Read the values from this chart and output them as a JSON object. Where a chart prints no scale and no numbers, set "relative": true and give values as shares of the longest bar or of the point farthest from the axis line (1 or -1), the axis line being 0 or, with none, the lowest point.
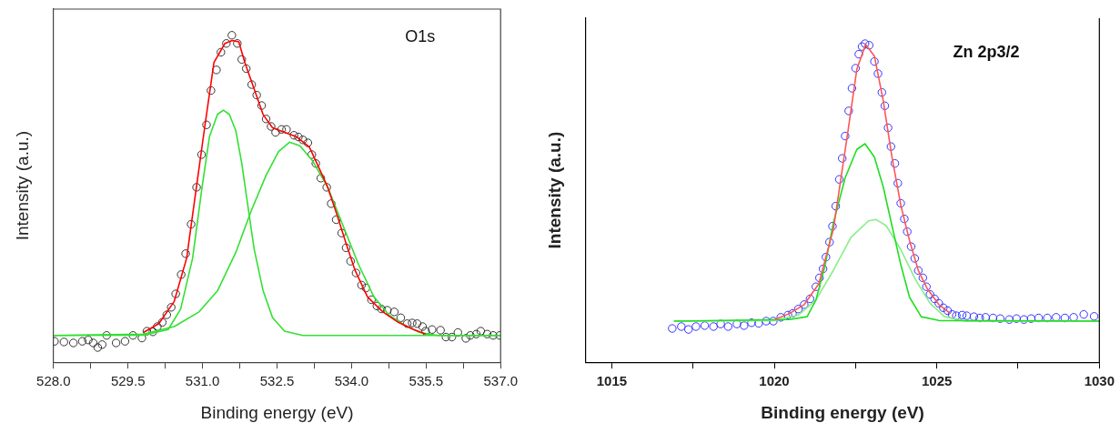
{
  "chart_data": [
    {
      "type": "scatter",
      "relative": true,
      "xlabel": "Binding energy (eV)",
      "ylabel": "Intensity (a.u.)",
      "annotations": [
        "O1s"
      ],
      "grid": false,
      "legend": false,
      "tick_labels": "x",
      "xlim": [
        528,
        537
      ],
      "xticks": [
        {
          "value": 528,
          "label": "528.0"
        },
        {
          "value": 528.75,
          "label": null
        },
        {
          "value": 529.5,
          "label": "529.5"
        },
        {
          "value": 530.25,
          "label": null
        },
        {
          "value": 531,
          "label": "531.0"
        },
        {
          "value": 531.75,
          "label": null
        },
        {
          "value": 532.5,
          "label": "532.5"
        },
        {
          "value": 533.25,
          "label": null
        },
        {
          "value": 534,
          "label": "534.0"
        },
        {
          "value": 534.75,
          "label": null
        },
        {
          "value": 535.5,
          "label": "535.5"
        },
        {
          "value": 536.25,
          "label": null
        },
        {
          "value": 537,
          "label": "537.0"
        }
      ],
      "series": [
        {
          "type": "scatter",
          "marker": "circle",
          "color": "#333333",
          "x": [
            528.02,
            528.21,
            528.4,
            528.58,
            528.7,
            528.8,
            528.89,
            528.98,
            529.07,
            529.26,
            529.44,
            529.6,
            529.78,
            529.88,
            530.0,
            530.09,
            530.19,
            530.28,
            530.37,
            530.46,
            530.57,
            530.66,
            530.77,
            530.88,
            530.98,
            531.08,
            531.17,
            531.28,
            531.37,
            531.48,
            531.59,
            531.7,
            531.79,
            531.88,
            531.99,
            532.09,
            532.19,
            532.28,
            532.38,
            532.47,
            532.59,
            532.69,
            532.84,
            532.93,
            533.02,
            533.12,
            533.2,
            533.28,
            533.38,
            533.5,
            533.59,
            533.69,
            533.8,
            533.89,
            533.98,
            534.09,
            534.2,
            534.29,
            534.4,
            534.51,
            534.6,
            534.72,
            534.86,
            534.99,
            535.12,
            535.22,
            535.32,
            535.43,
            535.49,
            535.62,
            535.79,
            535.9,
            536.02,
            536.14,
            536.3,
            536.39,
            536.51,
            536.6,
            536.73,
            536.85,
            536.98
          ],
          "values": [
            0.064,
            0.062,
            0.059,
            0.064,
            0.068,
            0.059,
            0.045,
            0.054,
            0.082,
            0.059,
            0.064,
            0.082,
            0.074,
            0.095,
            0.093,
            0.109,
            0.122,
            0.145,
            0.168,
            0.209,
            0.268,
            0.332,
            0.422,
            0.535,
            0.635,
            0.726,
            0.831,
            0.894,
            0.948,
            0.975,
            1.0,
            0.975,
            0.926,
            0.898,
            0.849,
            0.817,
            0.785,
            0.744,
            0.721,
            0.703,
            0.712,
            0.712,
            0.694,
            0.689,
            0.68,
            0.671,
            0.635,
            0.608,
            0.563,
            0.535,
            0.485,
            0.436,
            0.395,
            0.35,
            0.309,
            0.273,
            0.236,
            0.227,
            0.191,
            0.172,
            0.163,
            0.159,
            0.154,
            0.136,
            0.118,
            0.12,
            0.118,
            0.109,
            0.095,
            0.1,
            0.098,
            0.077,
            0.077,
            0.091,
            0.073,
            0.082,
            0.086,
            0.095,
            0.086,
            0.082,
            0.082
          ]
        },
        {
          "type": "line",
          "marker": "none",
          "color": "#ff0000",
          "x": [
            529.81,
            530.12,
            530.43,
            530.68,
            530.86,
            531.05,
            531.23,
            531.45,
            531.6,
            531.73,
            531.85,
            532.04,
            532.22,
            532.41,
            532.65,
            532.9,
            533.15,
            533.33,
            533.52,
            533.7,
            533.89,
            534.07,
            534.32,
            534.63,
            534.94,
            535.25,
            535.49
          ],
          "values": [
            0.091,
            0.118,
            0.186,
            0.318,
            0.517,
            0.726,
            0.917,
            0.975,
            0.984,
            0.98,
            0.917,
            0.835,
            0.757,
            0.717,
            0.703,
            0.689,
            0.658,
            0.599,
            0.535,
            0.454,
            0.363,
            0.281,
            0.2,
            0.154,
            0.122,
            0.1,
            0.086
          ]
        },
        {
          "type": "line",
          "marker": "none",
          "color": "#33e033",
          "x": [
            528.0,
            529.81,
            530.31,
            530.56,
            530.8,
            530.99,
            531.14,
            531.3,
            531.42,
            531.54,
            531.67,
            531.79,
            531.91,
            532.04,
            532.22,
            532.41,
            532.65,
            533.02,
            537.0
          ],
          "values": [
            0.082,
            0.083,
            0.1,
            0.163,
            0.318,
            0.535,
            0.69,
            0.758,
            0.771,
            0.758,
            0.708,
            0.608,
            0.481,
            0.345,
            0.218,
            0.136,
            0.095,
            0.082,
            0.082
          ]
        },
        {
          "type": "line",
          "marker": "none",
          "color": "#33e033",
          "x": [
            528.0,
            529.81,
            530.43,
            530.93,
            531.3,
            531.67,
            531.98,
            532.28,
            532.53,
            532.75,
            532.96,
            533.21,
            533.52,
            533.83,
            534.14,
            534.45,
            534.75,
            535.06,
            535.37,
            535.74,
            537.0
          ],
          "values": [
            0.082,
            0.086,
            0.109,
            0.154,
            0.218,
            0.336,
            0.463,
            0.572,
            0.644,
            0.673,
            0.662,
            0.617,
            0.535,
            0.417,
            0.299,
            0.2,
            0.145,
            0.114,
            0.091,
            0.082,
            0.082
          ]
        }
      ]
    },
    {
      "type": "scatter",
      "relative": true,
      "xlabel": "Binding energy (eV)",
      "ylabel": "Intensity (a.u.)",
      "annotations": [
        "Zn 2p3/2"
      ],
      "grid": false,
      "legend": false,
      "tick_labels": "x",
      "xlim": [
        1014.2,
        1030
      ],
      "xticks": [
        1015,
        {
          "value": 1017.5,
          "label": null
        },
        1020,
        {
          "value": 1022.5,
          "label": null
        },
        1025,
        {
          "value": 1027.5,
          "label": null
        },
        1030
      ],
      "series": [
        {
          "type": "scatter",
          "marker": "circle",
          "color": "#3333ff",
          "x": [
            1016.86,
            1017.14,
            1017.36,
            1017.59,
            1017.86,
            1018.13,
            1018.35,
            1018.58,
            1018.85,
            1019.07,
            1019.3,
            1019.52,
            1019.75,
            1019.97,
            1020.2,
            1020.42,
            1020.56,
            1020.74,
            1020.92,
            1021.1,
            1021.28,
            1021.39,
            1021.5,
            1021.59,
            1021.7,
            1021.79,
            1021.89,
            1022.0,
            1022.09,
            1022.18,
            1022.29,
            1022.39,
            1022.5,
            1022.6,
            1022.7,
            1022.79,
            1022.92,
            1023.08,
            1023.19,
            1023.31,
            1023.4,
            1023.5,
            1023.59,
            1023.71,
            1023.8,
            1023.89,
            1024.0,
            1024.09,
            1024.21,
            1024.32,
            1024.43,
            1024.57,
            1024.68,
            1024.79,
            1024.93,
            1025.06,
            1025.2,
            1025.33,
            1025.47,
            1025.6,
            1025.78,
            1025.92,
            1026.14,
            1026.32,
            1026.5,
            1026.73,
            1026.95,
            1027.23,
            1027.45,
            1027.68,
            1027.9,
            1028.13,
            1028.4,
            1028.67,
            1028.94,
            1029.21,
            1029.52,
            1029.84
          ],
          "values": [
            0.106,
            0.112,
            0.103,
            0.112,
            0.115,
            0.112,
            0.12,
            0.112,
            0.12,
            0.115,
            0.124,
            0.122,
            0.129,
            0.129,
            0.141,
            0.148,
            0.153,
            0.167,
            0.181,
            0.199,
            0.237,
            0.265,
            0.293,
            0.33,
            0.377,
            0.427,
            0.49,
            0.574,
            0.64,
            0.71,
            0.789,
            0.86,
            0.923,
            0.967,
            0.991,
            1.0,
            0.995,
            0.944,
            0.906,
            0.847,
            0.805,
            0.736,
            0.677,
            0.624,
            0.562,
            0.499,
            0.45,
            0.41,
            0.363,
            0.326,
            0.288,
            0.265,
            0.237,
            0.213,
            0.199,
            0.185,
            0.171,
            0.162,
            0.15,
            0.146,
            0.148,
            0.146,
            0.143,
            0.139,
            0.141,
            0.139,
            0.137,
            0.134,
            0.137,
            0.134,
            0.137,
            0.139,
            0.139,
            0.141,
            0.139,
            0.141,
            0.15,
            0.144
          ]
        },
        {
          "type": "line",
          "marker": "none",
          "color": "#ff5555",
          "x": [
            1020.02,
            1020.47,
            1020.92,
            1021.37,
            1021.82,
            1022.27,
            1022.54,
            1022.81,
            1023.08,
            1023.35,
            1023.62,
            1023.89,
            1024.16,
            1024.43,
            1024.7,
            1025.06,
            1025.42
          ],
          "values": [
            0.134,
            0.153,
            0.181,
            0.246,
            0.419,
            0.728,
            0.92,
            0.998,
            0.961,
            0.822,
            0.644,
            0.494,
            0.382,
            0.288,
            0.232,
            0.181,
            0.153
          ]
        },
        {
          "type": "line",
          "marker": "none",
          "color": "#22dd22",
          "x": [
            1016.91,
            1020.47,
            1021.01,
            1021.28,
            1021.55,
            1021.82,
            1022.18,
            1022.54,
            1022.79,
            1023.08,
            1023.35,
            1023.62,
            1023.89,
            1024.16,
            1024.52,
            1025.06,
            1030.0
          ],
          "values": [
            0.129,
            0.134,
            0.143,
            0.195,
            0.298,
            0.438,
            0.579,
            0.668,
            0.686,
            0.644,
            0.551,
            0.429,
            0.307,
            0.204,
            0.143,
            0.131,
            0.129
          ]
        },
        {
          "type": "line",
          "marker": "none",
          "color": "#88ee88",
          "x": [
            1016.91,
            1020.02,
            1020.74,
            1021.28,
            1021.82,
            1022.36,
            1022.9,
            1023.13,
            1023.44,
            1023.89,
            1024.34,
            1024.79,
            1025.24,
            1025.87,
            1030.0
          ],
          "values": [
            0.129,
            0.131,
            0.148,
            0.195,
            0.289,
            0.392,
            0.444,
            0.448,
            0.429,
            0.354,
            0.26,
            0.185,
            0.143,
            0.129,
            0.129
          ]
        }
      ]
    }
  ]
}
